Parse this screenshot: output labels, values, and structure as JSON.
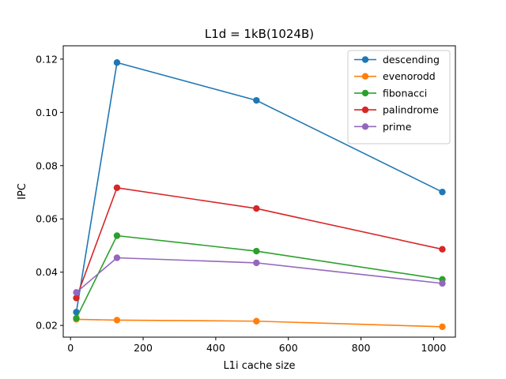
{
  "chart_data": {
    "type": "line",
    "title": "L1d = 1kB(1024B)",
    "xlabel": "L1i cache size",
    "ylabel": "IPC",
    "x": [
      16,
      128,
      512,
      1024
    ],
    "xlim": [
      -20,
      1060
    ],
    "ylim": [
      0.0156,
      0.125
    ],
    "xticks": [
      0,
      200,
      400,
      600,
      800,
      1000
    ],
    "xtick_labels": [
      "0",
      "200",
      "400",
      "600",
      "800",
      "1000"
    ],
    "yticks": [
      0.02,
      0.04,
      0.06,
      0.08,
      0.1,
      0.12
    ],
    "ytick_labels": [
      "0.02",
      "0.04",
      "0.06",
      "0.08",
      "0.10",
      "0.12"
    ],
    "grid": false,
    "legend_position": "top-right",
    "series": [
      {
        "name": "descending",
        "color": "#1f77b4",
        "values": [
          0.025,
          0.1187,
          0.1045,
          0.0701
        ]
      },
      {
        "name": "evenorodd",
        "color": "#ff7f0e",
        "values": [
          0.0223,
          0.022,
          0.0216,
          0.0195
        ]
      },
      {
        "name": "fibonacci",
        "color": "#2ca02c",
        "values": [
          0.0227,
          0.0537,
          0.0479,
          0.0373
        ]
      },
      {
        "name": "palindrome",
        "color": "#d62728",
        "values": [
          0.0303,
          0.0717,
          0.0639,
          0.0486
        ]
      },
      {
        "name": "prime",
        "color": "#9467bd",
        "values": [
          0.0324,
          0.0454,
          0.0435,
          0.0358
        ]
      }
    ]
  }
}
